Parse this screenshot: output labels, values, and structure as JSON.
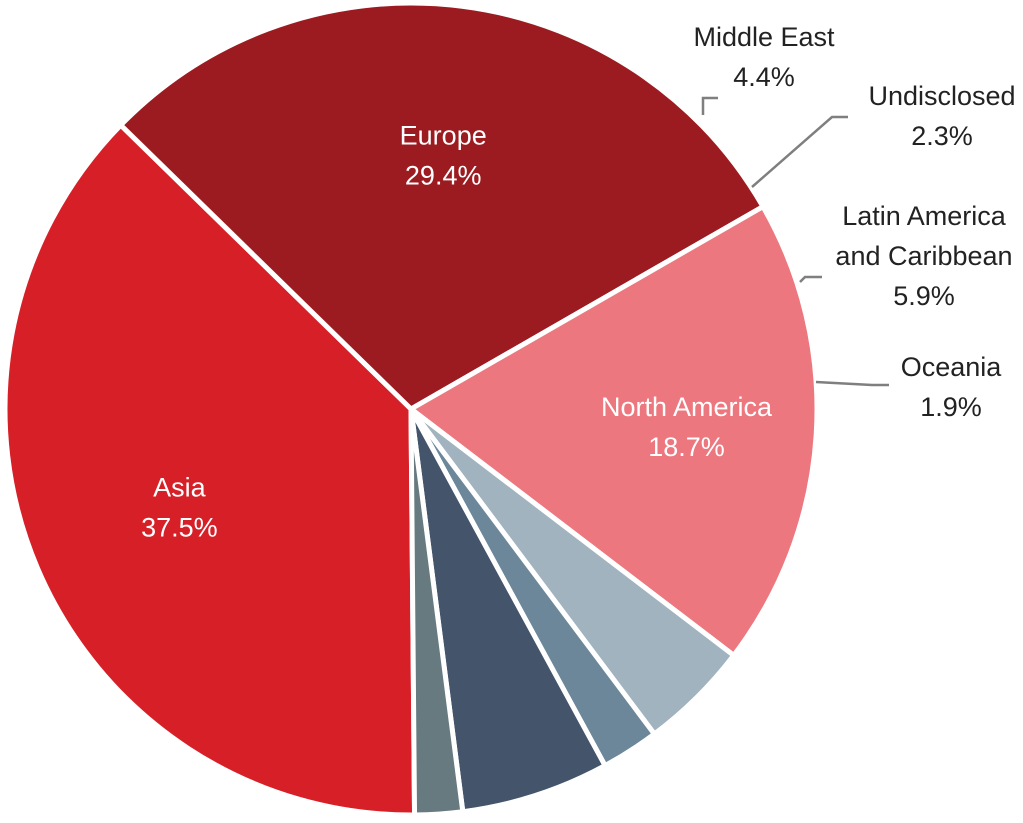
{
  "chart_data": {
    "type": "pie",
    "title": "",
    "slices": [
      {
        "label": "Asia",
        "value": 37.5,
        "value_label": "37.5%",
        "color": "#d71f27",
        "label_color": "#ffffff"
      },
      {
        "label": "Europe",
        "value": 29.4,
        "value_label": "29.4%",
        "color": "#9c1b20",
        "label_color": "#ffffff"
      },
      {
        "label": "North America",
        "value": 18.7,
        "value_label": "18.7%",
        "color": "#ec777e",
        "label_color": "#ffffff"
      },
      {
        "label": "Middle East",
        "value": 4.4,
        "value_label": "4.4%",
        "color": "#a1b3bf",
        "label_color": "#222222"
      },
      {
        "label": "Undisclosed",
        "value": 2.3,
        "value_label": "2.3%",
        "color": "#6b8799",
        "label_color": "#222222"
      },
      {
        "label": "Latin America and Caribbean",
        "label_lines": [
          "Latin America",
          "and Caribbean"
        ],
        "value": 5.9,
        "value_label": "5.9%",
        "color": "#43546b",
        "label_color": "#222222"
      },
      {
        "label": "Oceania",
        "value": 1.9,
        "value_label": "1.9%",
        "color": "#677a80",
        "label_color": "#222222"
      }
    ],
    "legend": "none"
  }
}
